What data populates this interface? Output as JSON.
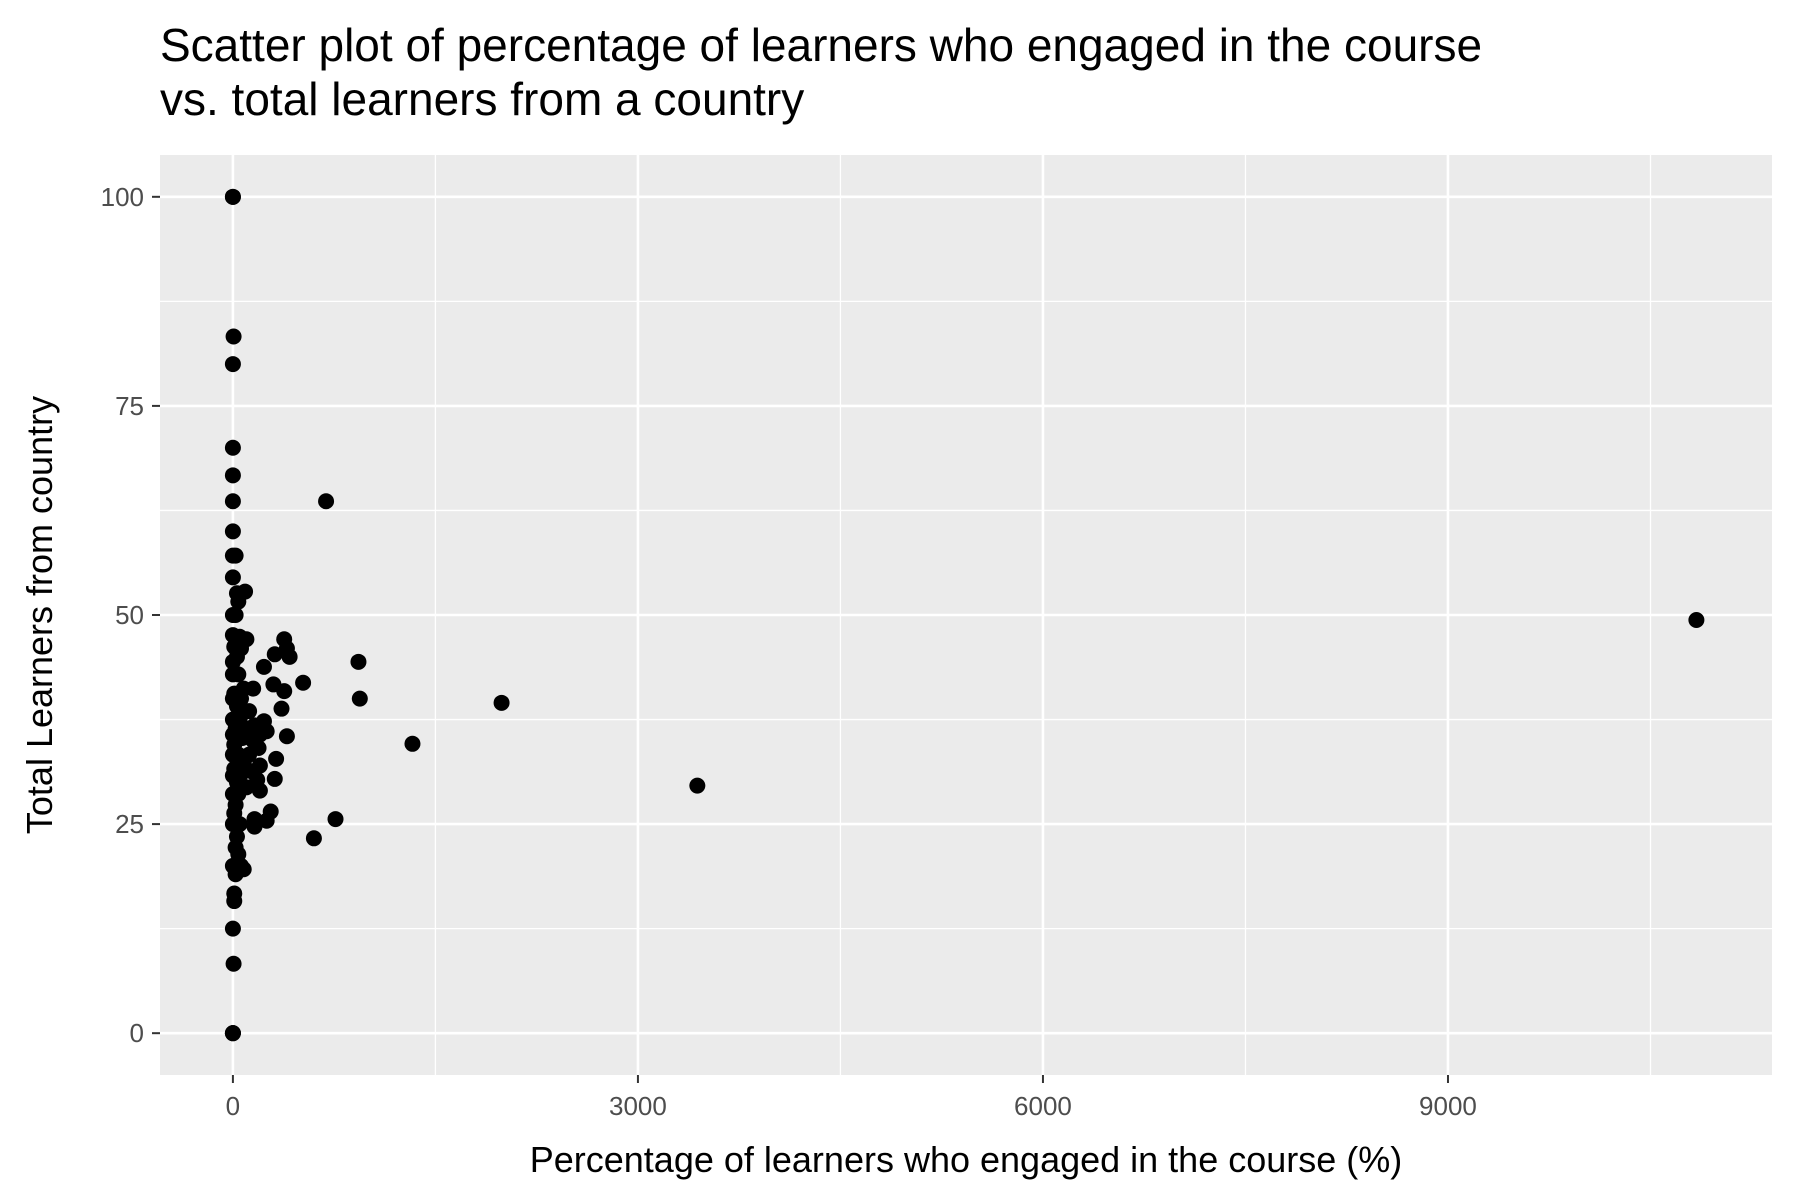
{
  "chart_data": {
    "type": "scatter",
    "title": "Scatter plot of percentage of learners who engaged in the course\n vs. total learners from a country",
    "xlabel": "Percentage of learners who engaged in the course (%)",
    "ylabel": "Total Learners from country",
    "xlim": [
      -540,
      11400
    ],
    "ylim": [
      -5,
      105
    ],
    "x_ticks": [
      0,
      3000,
      6000,
      9000
    ],
    "y_ticks": [
      0,
      25,
      50,
      75,
      100
    ],
    "x_minor": [
      1500,
      4500,
      7500,
      10500
    ],
    "y_minor": [
      12.5,
      37.5,
      62.5,
      87.5
    ],
    "grid": true,
    "legend": "none",
    "point_color": "#000000",
    "panel_background": "#ebebeb",
    "points": [
      {
        "x": 0,
        "y": 100
      },
      {
        "x": 0,
        "y": 100
      },
      {
        "x": 5,
        "y": 83.3
      },
      {
        "x": 0,
        "y": 80
      },
      {
        "x": 0,
        "y": 70
      },
      {
        "x": 0,
        "y": 66.7
      },
      {
        "x": 0,
        "y": 63.6
      },
      {
        "x": 690,
        "y": 63.6
      },
      {
        "x": 0,
        "y": 60
      },
      {
        "x": 0,
        "y": 57.1
      },
      {
        "x": 20,
        "y": 57.1
      },
      {
        "x": 0,
        "y": 54.5
      },
      {
        "x": 30,
        "y": 52.6
      },
      {
        "x": 90,
        "y": 52.8
      },
      {
        "x": 40,
        "y": 51.6
      },
      {
        "x": 0,
        "y": 50
      },
      {
        "x": 20,
        "y": 50
      },
      {
        "x": 0,
        "y": 47.6
      },
      {
        "x": 50,
        "y": 47.4
      },
      {
        "x": 100,
        "y": 47.1
      },
      {
        "x": 10,
        "y": 46.2
      },
      {
        "x": 60,
        "y": 46
      },
      {
        "x": 380,
        "y": 47.1
      },
      {
        "x": 400,
        "y": 46
      },
      {
        "x": 420,
        "y": 45
      },
      {
        "x": 310,
        "y": 45.3
      },
      {
        "x": 30,
        "y": 45
      },
      {
        "x": 0,
        "y": 44.4
      },
      {
        "x": 930,
        "y": 44.4
      },
      {
        "x": 230,
        "y": 43.8
      },
      {
        "x": 0,
        "y": 42.9
      },
      {
        "x": 40,
        "y": 42.9
      },
      {
        "x": 520,
        "y": 41.9
      },
      {
        "x": 300,
        "y": 41.7
      },
      {
        "x": 80,
        "y": 41.2
      },
      {
        "x": 150,
        "y": 41.2
      },
      {
        "x": 380,
        "y": 40.9
      },
      {
        "x": 10,
        "y": 40.6
      },
      {
        "x": 0,
        "y": 40
      },
      {
        "x": 60,
        "y": 40
      },
      {
        "x": 940,
        "y": 40
      },
      {
        "x": 1990,
        "y": 39.5
      },
      {
        "x": 30,
        "y": 39.1
      },
      {
        "x": 360,
        "y": 38.8
      },
      {
        "x": 120,
        "y": 38.5
      },
      {
        "x": 0,
        "y": 37.5
      },
      {
        "x": 50,
        "y": 37.5
      },
      {
        "x": 230,
        "y": 37.3
      },
      {
        "x": 160,
        "y": 36.8
      },
      {
        "x": 20,
        "y": 36.4
      },
      {
        "x": 100,
        "y": 36.4
      },
      {
        "x": 250,
        "y": 36.1
      },
      {
        "x": 0,
        "y": 35.7
      },
      {
        "x": 200,
        "y": 35.7
      },
      {
        "x": 400,
        "y": 35.5
      },
      {
        "x": 70,
        "y": 35.3
      },
      {
        "x": 150,
        "y": 35
      },
      {
        "x": 1330,
        "y": 34.6
      },
      {
        "x": 10,
        "y": 34.5
      },
      {
        "x": 190,
        "y": 34.1
      },
      {
        "x": 0,
        "y": 33.3
      },
      {
        "x": 40,
        "y": 33.3
      },
      {
        "x": 120,
        "y": 33.3
      },
      {
        "x": 320,
        "y": 32.8
      },
      {
        "x": 80,
        "y": 32.4
      },
      {
        "x": 200,
        "y": 32
      },
      {
        "x": 10,
        "y": 31.6
      },
      {
        "x": 140,
        "y": 31.3
      },
      {
        "x": 60,
        "y": 31
      },
      {
        "x": 0,
        "y": 30.8
      },
      {
        "x": 310,
        "y": 30.4
      },
      {
        "x": 30,
        "y": 30
      },
      {
        "x": 180,
        "y": 30.3
      },
      {
        "x": 3440,
        "y": 29.6
      },
      {
        "x": 100,
        "y": 29.4
      },
      {
        "x": 200,
        "y": 29
      },
      {
        "x": 0,
        "y": 28.6
      },
      {
        "x": 40,
        "y": 28.6
      },
      {
        "x": 20,
        "y": 27.3
      },
      {
        "x": 280,
        "y": 26.5
      },
      {
        "x": 10,
        "y": 26.3
      },
      {
        "x": 760,
        "y": 25.6
      },
      {
        "x": 160,
        "y": 25.6
      },
      {
        "x": 250,
        "y": 25.4
      },
      {
        "x": 0,
        "y": 25
      },
      {
        "x": 50,
        "y": 25
      },
      {
        "x": 160,
        "y": 24.7
      },
      {
        "x": 30,
        "y": 23.5
      },
      {
        "x": 600,
        "y": 23.3
      },
      {
        "x": 20,
        "y": 22.2
      },
      {
        "x": 40,
        "y": 21.4
      },
      {
        "x": 0,
        "y": 20
      },
      {
        "x": 60,
        "y": 20
      },
      {
        "x": 80,
        "y": 19.6
      },
      {
        "x": 20,
        "y": 19
      },
      {
        "x": 10,
        "y": 16.7
      },
      {
        "x": 10,
        "y": 15.8
      },
      {
        "x": 0,
        "y": 12.5
      },
      {
        "x": 5,
        "y": 8.3
      },
      {
        "x": 0,
        "y": 0
      },
      {
        "x": 0,
        "y": 0
      },
      {
        "x": 0,
        "y": 0
      },
      {
        "x": 10840,
        "y": 49.4
      }
    ]
  }
}
